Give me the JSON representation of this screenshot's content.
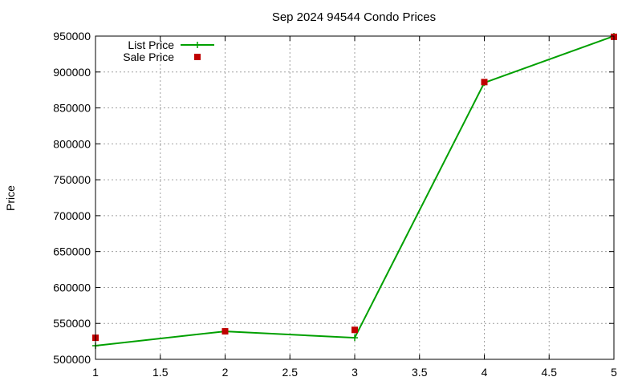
{
  "chart_data": {
    "type": "line",
    "title": "Sep 2024 94544 Condo Prices",
    "xlabel": "",
    "ylabel": "Price",
    "xlim": [
      1,
      5
    ],
    "ylim": [
      500000,
      950000
    ],
    "xticks": [
      "1",
      "1.5",
      "2",
      "2.5",
      "3",
      "3.5",
      "4",
      "4.5",
      "5"
    ],
    "yticks": [
      "500000",
      "550000",
      "600000",
      "650000",
      "700000",
      "750000",
      "800000",
      "850000",
      "900000",
      "950000"
    ],
    "grid": true,
    "legend_position": "top-left",
    "series": [
      {
        "name": "List Price",
        "style": "line",
        "color": "#00a000",
        "x": [
          1,
          2,
          3,
          4,
          5
        ],
        "y": [
          519000,
          539000,
          530000,
          885000,
          950000
        ]
      },
      {
        "name": "Sale Price",
        "style": "points",
        "color": "#c00000",
        "x": [
          1,
          2,
          3,
          4,
          5
        ],
        "y": [
          530000,
          539000,
          541000,
          886000,
          949000
        ]
      }
    ]
  }
}
